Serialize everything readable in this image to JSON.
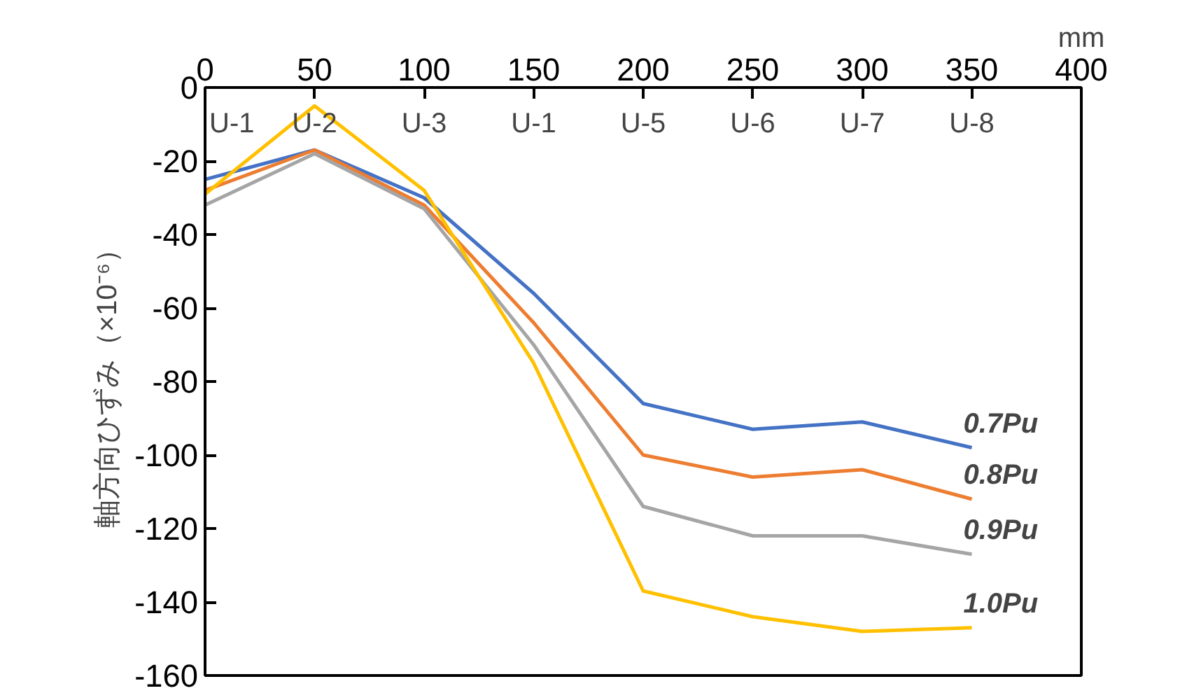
{
  "chart_data": {
    "type": "line",
    "ylabel": "軸方向ひずみ（×10⁻⁶）",
    "x": [
      0,
      50,
      100,
      150,
      200,
      250,
      300,
      350
    ],
    "xlim": [
      0,
      400
    ],
    "xticks": [
      0,
      50,
      100,
      150,
      200,
      250,
      300,
      350,
      400
    ],
    "ylim": [
      -160,
      0
    ],
    "yticks": [
      -160,
      -140,
      -120,
      -100,
      -80,
      -60,
      -40,
      -20,
      0
    ],
    "grid": false,
    "legend": false,
    "marker": "none",
    "line_style": "solid",
    "series": [
      {
        "name": "0.7Pu",
        "color": "#4472c4",
        "values": [
          -25,
          -17,
          -30,
          -56,
          -86,
          -93,
          -91,
          -98
        ]
      },
      {
        "name": "0.8Pu",
        "color": "#ed7d31",
        "values": [
          -28,
          -17,
          -32,
          -64,
          -100,
          -106,
          -104,
          -112
        ]
      },
      {
        "name": "0.9Pu",
        "color": "#a5a5a5",
        "values": [
          -32,
          -18,
          -33,
          -70,
          -114,
          -122,
          -122,
          -127
        ]
      },
      {
        "name": "1.0Pu",
        "color": "#ffc000",
        "values": [
          -29,
          -5,
          -28,
          -75,
          -137,
          -144,
          -148,
          -147
        ]
      }
    ],
    "annotations": [
      "U-1",
      "U-2",
      "U-3",
      "U-1",
      "U-5",
      "U-6",
      "U-7",
      "U-8",
      "mm"
    ]
  }
}
